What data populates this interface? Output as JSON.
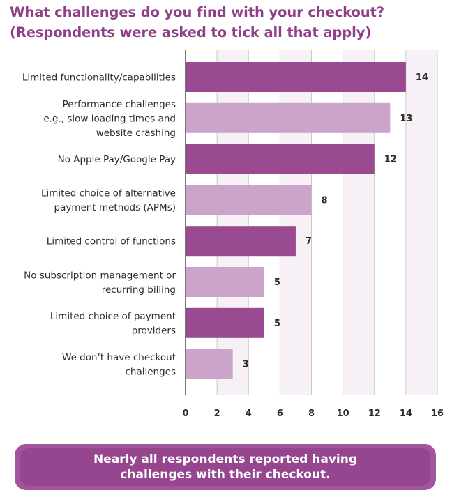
{
  "title": {
    "line1": "What challenges do you find with your checkout?",
    "line2": "(Respondents were asked to tick all that apply)"
  },
  "colors": {
    "title": "#8e3f87",
    "bar_dark": "#994a90",
    "bar_light": "#cda4c9",
    "band": "#f7f1f7",
    "banner": "#96468f"
  },
  "chart_data": {
    "type": "bar",
    "orientation": "horizontal",
    "title": "What challenges do you find with your checkout? (Respondents were asked to tick all that apply)",
    "xlim": [
      0,
      16
    ],
    "xticks": [
      0,
      2,
      4,
      6,
      8,
      10,
      12,
      14,
      16
    ],
    "categories": [
      [
        "Limited functionality/capabilities"
      ],
      [
        "Performance challenges",
        "e.g., slow loading times and",
        "website crashing"
      ],
      [
        "No Apple Pay/Google Pay"
      ],
      [
        "Limited choice of alternative",
        "payment methods (APMs)"
      ],
      [
        "Limited control of functions"
      ],
      [
        "No subscription management or",
        "recurring billing"
      ],
      [
        "Limited choice of payment",
        "providers"
      ],
      [
        "We don’t have checkout",
        "challenges"
      ]
    ],
    "values": [
      14,
      13,
      12,
      8,
      7,
      5,
      5,
      3
    ]
  },
  "banner": {
    "text": "Nearly all respondents reported having challenges with their checkout."
  }
}
